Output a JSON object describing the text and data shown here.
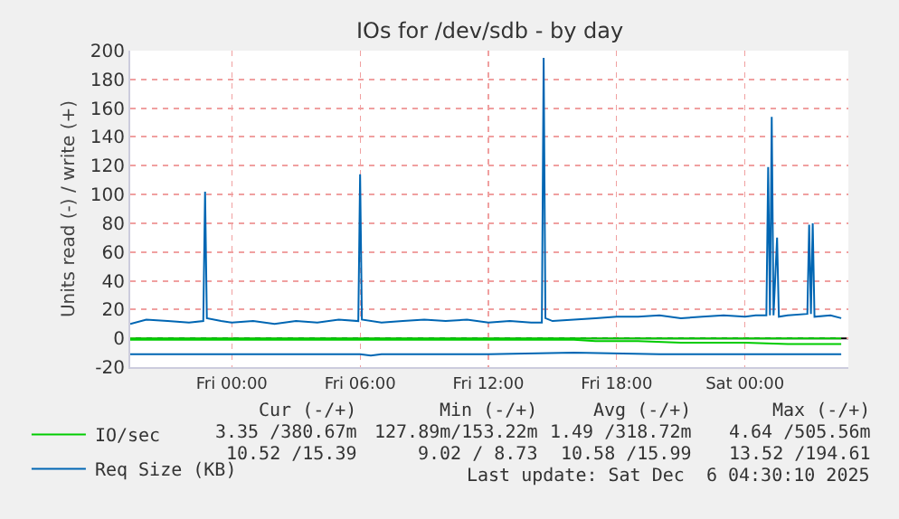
{
  "chart_data": {
    "type": "line",
    "title": "IOs for /dev/sdb - by day",
    "ylabel": "Units read (-) / write (+)",
    "xlim": [
      "2025-12-04T19:15",
      "2025-12-06T04:50"
    ],
    "xticks": [
      {
        "value": "2025-12-05T00:00",
        "label": "Fri 00:00"
      },
      {
        "value": "2025-12-05T06:00",
        "label": "Fri 06:00"
      },
      {
        "value": "2025-12-05T12:00",
        "label": "Fri 12:00"
      },
      {
        "value": "2025-12-05T18:00",
        "label": "Fri 18:00"
      },
      {
        "value": "2025-12-06T00:00",
        "label": "Sat 00:00"
      }
    ],
    "ylim": [
      -20,
      200
    ],
    "yticks": [
      -20,
      0,
      20,
      40,
      60,
      80,
      100,
      120,
      140,
      160,
      180,
      200
    ],
    "grid": true,
    "legend": "bottom left",
    "marker": "none",
    "line_style": "solid",
    "ref_lines": [
      {
        "axis": "y",
        "value": 0,
        "color": "#000000"
      }
    ],
    "series": [
      {
        "name": "IO/sec",
        "color": "#00cc00",
        "x": [
          "2025-12-04T19:15",
          "2025-12-05T04:00",
          "2025-12-05T10:00",
          "2025-12-05T16:00",
          "2025-12-05T17:00",
          "2025-12-05T19:00",
          "2025-12-05T21:00",
          "2025-12-06T00:00",
          "2025-12-06T02:00",
          "2025-12-06T04:30"
        ],
        "values": [
          -1,
          -1,
          -1,
          -1,
          -2,
          -2,
          -3,
          -3,
          -4,
          -4
        ]
      },
      {
        "color": "#00cc00",
        "x": [
          "2025-12-04T19:15",
          "2025-12-05T12:00",
          "2025-12-06T04:30"
        ],
        "values": [
          0,
          0,
          0
        ]
      },
      {
        "name": "Req Size (KB)",
        "color": "#0066b3",
        "x": [
          "2025-12-04T19:15",
          "2025-12-04T20:00",
          "2025-12-04T21:00",
          "2025-12-04T22:00",
          "2025-12-04T22:40",
          "2025-12-04T22:45",
          "2025-12-04T22:50",
          "2025-12-04T23:30",
          "2025-12-05T00:00",
          "2025-12-05T01:00",
          "2025-12-05T02:00",
          "2025-12-05T03:00",
          "2025-12-05T04:00",
          "2025-12-05T05:00",
          "2025-12-05T05:55",
          "2025-12-05T06:00",
          "2025-12-05T06:05",
          "2025-12-05T07:00",
          "2025-12-05T08:00",
          "2025-12-05T09:00",
          "2025-12-05T10:00",
          "2025-12-05T11:00",
          "2025-12-05T12:00",
          "2025-12-05T13:00",
          "2025-12-05T14:00",
          "2025-12-05T14:30",
          "2025-12-05T14:35",
          "2025-12-05T14:40",
          "2025-12-05T15:00",
          "2025-12-05T16:00",
          "2025-12-05T17:00",
          "2025-12-05T18:00",
          "2025-12-05T19:00",
          "2025-12-05T20:00",
          "2025-12-05T21:00",
          "2025-12-05T22:00",
          "2025-12-05T23:00",
          "2025-12-06T00:00",
          "2025-12-06T00:30",
          "2025-12-06T01:00",
          "2025-12-06T01:05",
          "2025-12-06T01:10",
          "2025-12-06T01:15",
          "2025-12-06T01:20",
          "2025-12-06T01:30",
          "2025-12-06T01:35",
          "2025-12-06T02:00",
          "2025-12-06T02:55",
          "2025-12-06T03:00",
          "2025-12-06T03:05",
          "2025-12-06T03:10",
          "2025-12-06T03:15",
          "2025-12-06T04:00",
          "2025-12-06T04:30"
        ],
        "values": [
          10,
          13,
          12,
          11,
          12,
          102,
          14,
          12,
          11,
          12,
          10,
          12,
          11,
          13,
          12,
          114,
          13,
          11,
          12,
          13,
          12,
          13,
          11,
          12,
          11,
          11,
          195,
          14,
          12,
          13,
          14,
          15,
          15,
          16,
          14,
          15,
          16,
          15,
          16,
          16,
          119,
          16,
          154,
          16,
          70,
          15,
          16,
          17,
          79,
          17,
          80,
          15,
          16,
          14
        ]
      },
      {
        "color": "#0066b3",
        "x": [
          "2025-12-04T19:15",
          "2025-12-04T23:00",
          "2025-12-05T03:00",
          "2025-12-05T06:00",
          "2025-12-05T06:30",
          "2025-12-05T07:00",
          "2025-12-05T12:00",
          "2025-12-05T16:00",
          "2025-12-05T20:00",
          "2025-12-06T00:00",
          "2025-12-06T04:30"
        ],
        "values": [
          -11,
          -11,
          -11,
          -11,
          -12,
          -11,
          -11,
          -10,
          -11,
          -11,
          -11
        ]
      }
    ],
    "annotations": [
      "Cur (-/+)",
      "Min (-/+)",
      "Avg (-/+)",
      "Max (-/+)",
      "3.35 /380.67m",
      "127.89m/153.22m",
      "1.49 /318.72m",
      "4.64 /505.56m",
      "10.52 /15.39",
      "9.02 / 8.73",
      "10.58 /15.99",
      "13.52 /194.61",
      "Last update: Sat Dec  6 04:30:10 2025"
    ]
  }
}
